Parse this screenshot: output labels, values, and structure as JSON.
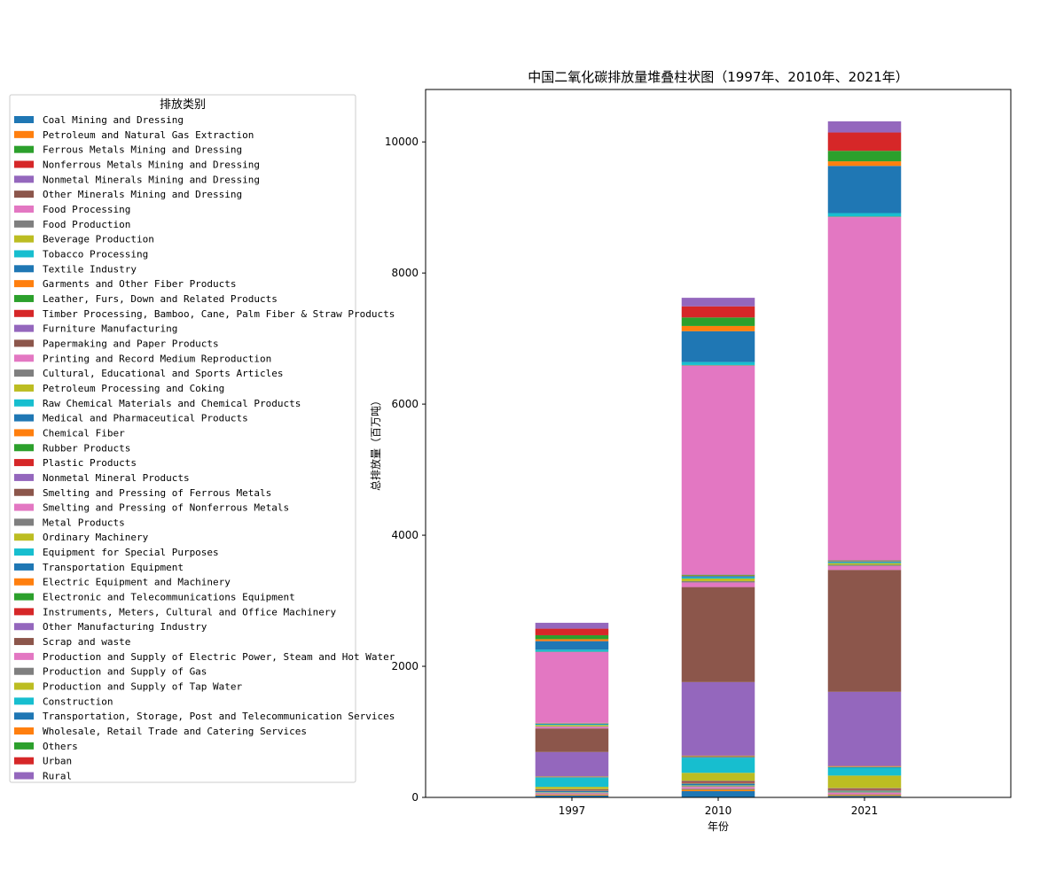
{
  "chart_data": {
    "type": "bar",
    "stacked": true,
    "title": "中国二氧化碳排放量堆叠柱状图（1997年、2010年、2021年）",
    "xlabel": "年份",
    "ylabel": "总排放量（百万吨）",
    "categories": [
      "1997",
      "2010",
      "2021"
    ],
    "ylim": [
      0,
      10800
    ],
    "yticks": [
      0,
      2000,
      4000,
      6000,
      8000,
      10000
    ],
    "grid": false,
    "legend": {
      "title": "排放类别",
      "placement": "left"
    },
    "colors": [
      "#1f77b4",
      "#ff7f0e",
      "#2ca02c",
      "#d62728",
      "#9467bd",
      "#8c564b",
      "#e377c2",
      "#7f7f7f",
      "#bcbd22",
      "#17becf"
    ],
    "series": [
      {
        "name": "Coal Mining and Dressing",
        "values": [
          28,
          95,
          22
        ]
      },
      {
        "name": "Petroleum and Natural Gas Extraction",
        "values": [
          12,
          22,
          15
        ]
      },
      {
        "name": "Ferrous Metals Mining and Dressing",
        "values": [
          3,
          8,
          5
        ]
      },
      {
        "name": "Nonferrous Metals Mining and Dressing",
        "values": [
          3,
          5,
          4
        ]
      },
      {
        "name": "Nonmetal Minerals Mining and Dressing",
        "values": [
          4,
          6,
          4
        ]
      },
      {
        "name": "Other Minerals Mining and Dressing",
        "values": [
          1,
          2,
          1
        ]
      },
      {
        "name": "Food Processing",
        "values": [
          12,
          22,
          20
        ]
      },
      {
        "name": "Food Production",
        "values": [
          8,
          12,
          9
        ]
      },
      {
        "name": "Beverage Production",
        "values": [
          6,
          9,
          7
        ]
      },
      {
        "name": "Tobacco Processing",
        "values": [
          2,
          3,
          2
        ]
      },
      {
        "name": "Textile Industry",
        "values": [
          20,
          25,
          15
        ]
      },
      {
        "name": "Garments and Other Fiber Products",
        "values": [
          3,
          5,
          4
        ]
      },
      {
        "name": "Leather, Furs, Down and Related Products",
        "values": [
          2,
          3,
          2
        ]
      },
      {
        "name": "Timber Processing, Bamboo, Cane, Palm Fiber & Straw Products",
        "values": [
          3,
          6,
          5
        ]
      },
      {
        "name": "Furniture Manufacturing",
        "values": [
          1,
          2,
          2
        ]
      },
      {
        "name": "Papermaking and Paper Products",
        "values": [
          15,
          25,
          22
        ]
      },
      {
        "name": "Printing and Record Medium Reproduction",
        "values": [
          2,
          3,
          2
        ]
      },
      {
        "name": "Cultural, Educational and Sports Articles",
        "values": [
          1,
          2,
          2
        ]
      },
      {
        "name": "Petroleum Processing and Coking",
        "values": [
          35,
          120,
          190
        ]
      },
      {
        "name": "Raw Chemical Materials and Chemical Products",
        "values": [
          140,
          230,
          120
        ]
      },
      {
        "name": "Medical and Pharmaceutical Products",
        "values": [
          8,
          12,
          10
        ]
      },
      {
        "name": "Chemical Fiber",
        "values": [
          6,
          10,
          8
        ]
      },
      {
        "name": "Rubber Products",
        "values": [
          4,
          6,
          5
        ]
      },
      {
        "name": "Plastic Products",
        "values": [
          3,
          6,
          5
        ]
      },
      {
        "name": "Nonmetal Mineral Products",
        "values": [
          370,
          1120,
          1130
        ]
      },
      {
        "name": "Smelting and Pressing of Ferrous Metals",
        "values": [
          360,
          1450,
          1860
        ]
      },
      {
        "name": "Smelting and Pressing of Nonferrous Metals",
        "values": [
          25,
          70,
          60
        ]
      },
      {
        "name": "Metal Products",
        "values": [
          8,
          20,
          18
        ]
      },
      {
        "name": "Ordinary Machinery",
        "values": [
          20,
          40,
          25
        ]
      },
      {
        "name": "Equipment for Special Purposes",
        "values": [
          10,
          18,
          12
        ]
      },
      {
        "name": "Transportation Equipment",
        "values": [
          10,
          20,
          15
        ]
      },
      {
        "name": "Electric Equipment and Machinery",
        "values": [
          4,
          8,
          6
        ]
      },
      {
        "name": "Electronic and Telecommunications Equipment",
        "values": [
          3,
          8,
          6
        ]
      },
      {
        "name": "Instruments, Meters, Cultural and Office Machinery",
        "values": [
          1,
          2,
          2
        ]
      },
      {
        "name": "Other Manufacturing Industry",
        "values": [
          5,
          8,
          5
        ]
      },
      {
        "name": "Scrap and waste",
        "values": [
          0,
          2,
          2
        ]
      },
      {
        "name": "Production and Supply of Electric Power, Steam and Hot Water",
        "values": [
          1080,
          3180,
          5230
        ]
      },
      {
        "name": "Production and Supply of Gas",
        "values": [
          5,
          10,
          10
        ]
      },
      {
        "name": "Production and Supply of Tap Water",
        "values": [
          1,
          2,
          2
        ]
      },
      {
        "name": "Construction",
        "values": [
          30,
          45,
          50
        ]
      },
      {
        "name": "Transportation, Storage, Post and Telecommunication Services",
        "values": [
          130,
          470,
          720
        ]
      },
      {
        "name": "Wholesale, Retail Trade and Catering Services",
        "values": [
          30,
          80,
          70
        ]
      },
      {
        "name": "Others",
        "values": [
          60,
          130,
          160
        ]
      },
      {
        "name": "Urban",
        "values": [
          100,
          170,
          280
        ]
      },
      {
        "name": "Rural",
        "values": [
          90,
          130,
          170
        ]
      }
    ]
  }
}
